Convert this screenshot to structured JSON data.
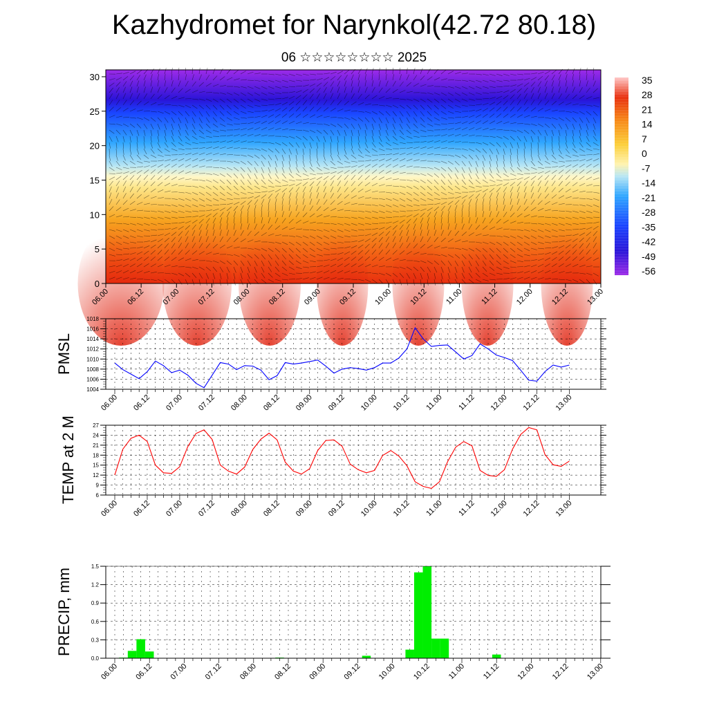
{
  "title": "Kazhydromet for Narynkol(42.72 80.18)",
  "subtitle": "06 ☆☆☆☆☆☆☆☆ 2025",
  "chart_data": [
    {
      "type": "heatmap",
      "name": "vertical cross-section",
      "ylim": [
        0,
        31
      ],
      "yticks": [
        0,
        5,
        10,
        15,
        20,
        25,
        30
      ],
      "xticks": [
        "06.00",
        "06.12",
        "07.00",
        "07.12",
        "08.00",
        "08.12",
        "09.00",
        "09.12",
        "10.00",
        "10.12",
        "11.00",
        "11.12",
        "12.00",
        "12.12",
        "13.00"
      ],
      "colorbar_labels": [
        "35",
        "28",
        "21",
        "14",
        "7",
        "0",
        "-7",
        "-14",
        "-21",
        "-28",
        "-35",
        "-42",
        "-49",
        "-56"
      ],
      "colors": [
        "#9d2be8",
        "#3a3aff",
        "#2fa6ff",
        "#b8e6f4",
        "#fff3b0",
        "#fccf3a",
        "#f78a17",
        "#e8300f",
        "#ffc0c0"
      ]
    },
    {
      "type": "line",
      "ylabel": "PMSL",
      "ylim": [
        1004,
        1018
      ],
      "yticks": [
        1004,
        1006,
        1008,
        1010,
        1012,
        1014,
        1016,
        1018
      ],
      "xticks": [
        "06.00",
        "06.12",
        "07.00",
        "07.12",
        "08.00",
        "08.12",
        "09.00",
        "09.12",
        "10.00",
        "10.12",
        "11.00",
        "11.12",
        "12.00",
        "12.12",
        "13.00"
      ],
      "x": [
        0,
        1,
        2,
        3,
        4,
        5,
        6,
        7,
        8,
        9,
        10,
        11,
        12,
        13,
        14,
        15,
        16,
        17,
        18,
        19,
        20,
        21,
        22,
        23,
        24,
        25,
        26,
        27,
        28,
        29,
        30,
        31,
        32,
        33,
        34,
        35,
        36,
        37,
        38,
        39,
        40,
        41,
        42,
        43,
        44,
        45,
        46,
        47,
        48,
        49,
        50,
        51,
        52,
        53,
        54,
        55,
        56
      ],
      "values": [
        1009.2,
        1007.9,
        1007.0,
        1006.1,
        1007.5,
        1009.6,
        1008.7,
        1007.3,
        1007.8,
        1006.8,
        1005.2,
        1004.3,
        1006.8,
        1009.3,
        1009.0,
        1007.9,
        1008.7,
        1008.6,
        1007.8,
        1005.9,
        1006.7,
        1009.3,
        1009.0,
        1009.2,
        1009.5,
        1009.8,
        1008.6,
        1007.2,
        1008.0,
        1008.3,
        1008.1,
        1007.8,
        1008.3,
        1009.2,
        1009.2,
        1010.2,
        1012.0,
        1016.2,
        1014.0,
        1012.5,
        1012.7,
        1012.8,
        1011.4,
        1010.0,
        1010.7,
        1013.0,
        1012.0,
        1010.8,
        1010.3,
        1009.7,
        1007.8,
        1005.8,
        1005.6,
        1007.5,
        1008.8,
        1008.4,
        1008.8
      ],
      "color": "#0000ff"
    },
    {
      "type": "line",
      "ylabel": "TEMP at 2 M",
      "ylim": [
        6,
        27
      ],
      "yticks": [
        6,
        9,
        12,
        15,
        18,
        21,
        24,
        27
      ],
      "xticks": [
        "06.00",
        "06.12",
        "07.00",
        "07.12",
        "08.00",
        "08.12",
        "09.00",
        "09.12",
        "10.00",
        "10.12",
        "11.00",
        "11.12",
        "12.00",
        "12.12",
        "13.00"
      ],
      "x": [
        0,
        1,
        2,
        3,
        4,
        5,
        6,
        7,
        8,
        9,
        10,
        11,
        12,
        13,
        14,
        15,
        16,
        17,
        18,
        19,
        20,
        21,
        22,
        23,
        24,
        25,
        26,
        27,
        28,
        29,
        30,
        31,
        32,
        33,
        34,
        35,
        36,
        37,
        38,
        39,
        40,
        41,
        42,
        43,
        44,
        45,
        46,
        47,
        48,
        49,
        50,
        51,
        52,
        53,
        54,
        55,
        56
      ],
      "values": [
        12.0,
        19.8,
        23.1,
        24.0,
        22.1,
        15.0,
        12.7,
        12.5,
        14.5,
        20.6,
        24.5,
        25.6,
        22.7,
        15.0,
        13.2,
        12.3,
        14.4,
        19.7,
        22.8,
        24.6,
        22.6,
        15.9,
        13.2,
        12.3,
        13.9,
        19.4,
        22.4,
        22.6,
        20.7,
        15.3,
        13.6,
        12.7,
        13.4,
        17.9,
        19.4,
        17.7,
        14.8,
        10.0,
        8.6,
        8.0,
        10.0,
        16.0,
        20.4,
        22.1,
        20.8,
        13.4,
        11.9,
        11.6,
        13.6,
        19.8,
        24.2,
        26.3,
        25.6,
        18.2,
        15.1,
        14.6,
        16.2
      ],
      "color": "#ff0000"
    },
    {
      "type": "bar",
      "ylabel": "PRECIP, mm",
      "ylim": [
        0,
        1.5
      ],
      "yticks": [
        "0.0",
        "0.3",
        "0.6",
        "0.9",
        "1.2",
        "1.5"
      ],
      "xticks": [
        "06.00",
        "06.12",
        "07.00",
        "07.12",
        "08.00",
        "08.12",
        "09.00",
        "09.12",
        "10.00",
        "10.12",
        "11.00",
        "11.12",
        "12.00",
        "12.12",
        "13.00"
      ],
      "x": [
        1,
        2,
        3,
        4,
        19,
        29,
        34,
        35,
        36,
        37,
        38,
        39,
        44
      ],
      "values": [
        0.01,
        0.12,
        0.31,
        0.11,
        0.01,
        0.04,
        0.14,
        1.4,
        1.5,
        0.32,
        0.32,
        0.0,
        0.06
      ],
      "color": "#00ee00"
    }
  ]
}
